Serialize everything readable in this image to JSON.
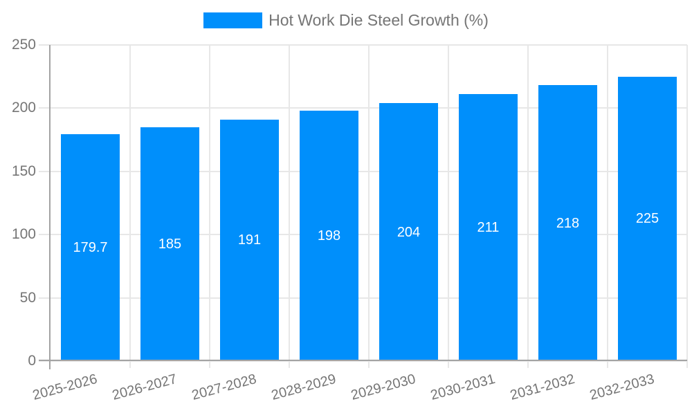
{
  "legend": {
    "label": "Hot Work Die Steel Growth (%)"
  },
  "chart_data": {
    "type": "bar",
    "title": "Hot Work Die Steel Growth (%)",
    "categories": [
      "2025-2026",
      "2026-2027",
      "2027-2028",
      "2028-2029",
      "2029-2030",
      "2030-2031",
      "2031-2032",
      "2032-2033"
    ],
    "values": [
      179.7,
      185,
      191,
      198,
      204,
      211,
      218,
      225
    ],
    "value_labels": [
      "179.7",
      "185",
      "191",
      "198",
      "204",
      "211",
      "218",
      "225"
    ],
    "xlabel": "",
    "ylabel": "",
    "ylim": [
      0,
      250
    ],
    "yticks": [
      0,
      50,
      100,
      150,
      200,
      250
    ],
    "ytick_labels": [
      "0",
      "50",
      "100",
      "150",
      "200",
      "250"
    ],
    "grid": true,
    "legend_position": "top",
    "x_label_rotation_deg": -15,
    "colors": {
      "bar": "#008FFB",
      "grid": "#e7e7e7",
      "axis": "#a3a3a3",
      "text": "#757575",
      "value_text": "#ffffff",
      "background": "#ffffff"
    }
  }
}
